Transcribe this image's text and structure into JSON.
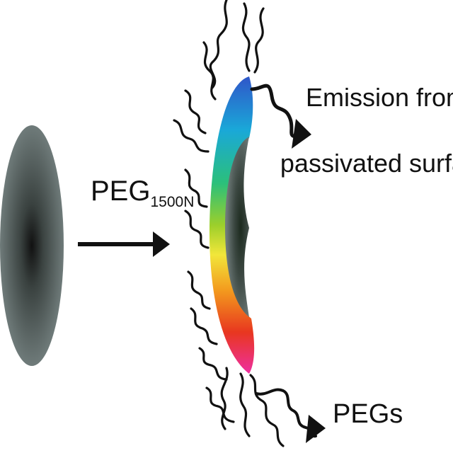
{
  "reagent": {
    "main": "PEG",
    "subscript": "1500N"
  },
  "emission_label": {
    "line1": "Emission from",
    "line2": "passivated surface"
  },
  "pegs_label": "PEGs",
  "colors": {
    "dot_gray": "#6f7b7a",
    "dot_core": "#1a1a1a",
    "spectrum": [
      "#2f56c9",
      "#1aa8d8",
      "#2bc07a",
      "#9ccf2b",
      "#f2e63a",
      "#f39a1e",
      "#e8371f",
      "#ee2fa0"
    ],
    "chain": "#111111"
  }
}
